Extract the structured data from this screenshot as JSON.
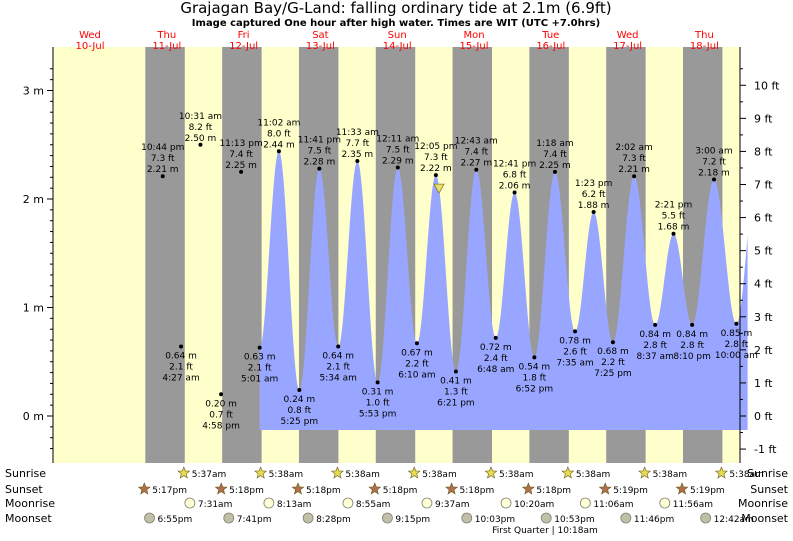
{
  "title": "Grajagan Bay/G-Land: falling  ordinary tide at 2.1m (6.9ft)",
  "subtitle": "Image captured One hour after high water. Times are WIT (UTC +7.0hrs)",
  "colors": {
    "night": "#999999",
    "day": "#ffffcc",
    "water": "#99a6ff",
    "weekday": "#ff0000",
    "star_fill": "#e8dc50",
    "sunset_fill": "#b0704a",
    "moonrise_fill": "#ffffd8",
    "moonset_fill": "#c0c0a8"
  },
  "chart_data": {
    "type": "area",
    "title": "Grajagan Bay/G-Land: falling  ordinary tide at 2.1m (6.9ft)",
    "y_left_unit": "m",
    "y_right_unit": "ft",
    "ylim_m": [
      -0.33,
      3.27
    ],
    "y_left_ticks": [
      {
        "v": 0,
        "label": "0 m"
      },
      {
        "v": 1,
        "label": "1 m"
      },
      {
        "v": 2,
        "label": "2 m"
      },
      {
        "v": 3,
        "label": "3 m"
      }
    ],
    "y_right_ticks": [
      "-1 ft",
      "0 ft",
      "1 ft",
      "2 ft",
      "3 ft",
      "4 ft",
      "5 ft",
      "6 ft",
      "7 ft",
      "8 ft",
      "9 ft",
      "10 ft"
    ],
    "days": [
      {
        "weekday": "Wed",
        "date": "10-Jul"
      },
      {
        "weekday": "Thu",
        "date": "11-Jul"
      },
      {
        "weekday": "Fri",
        "date": "12-Jul"
      },
      {
        "weekday": "Sat",
        "date": "13-Jul"
      },
      {
        "weekday": "Sun",
        "date": "14-Jul"
      },
      {
        "weekday": "Mon",
        "date": "15-Jul"
      },
      {
        "weekday": "Tue",
        "date": "16-Jul"
      },
      {
        "weekday": "Wed",
        "date": "17-Jul"
      },
      {
        "weekday": "Thu",
        "date": "18-Jul"
      }
    ],
    "extremes": [
      {
        "kind": "high",
        "day": 0,
        "time": "10:44 pm",
        "m": 2.21,
        "ft": "7.3 ft",
        "m_label": "2.21 m"
      },
      {
        "kind": "low",
        "day": 1,
        "time": "4:27 am",
        "m": 0.64,
        "ft": "2.1 ft",
        "m_label": "0.64 m"
      },
      {
        "kind": "high",
        "day": 1,
        "time": "10:31 am",
        "m": 2.5,
        "ft": "8.2 ft",
        "m_label": "2.50 m"
      },
      {
        "kind": "low",
        "day": 1,
        "time": "4:58 pm",
        "m": 0.2,
        "ft": "0.7 ft",
        "m_label": "0.20 m"
      },
      {
        "kind": "high",
        "day": 1,
        "time": "11:13 pm",
        "m": 2.25,
        "ft": "7.4 ft",
        "m_label": "2.25 m"
      },
      {
        "kind": "low",
        "day": 2,
        "time": "5:01 am",
        "m": 0.63,
        "ft": "2.1 ft",
        "m_label": "0.63 m"
      },
      {
        "kind": "high",
        "day": 2,
        "time": "11:02 am",
        "m": 2.44,
        "ft": "8.0 ft",
        "m_label": "2.44 m"
      },
      {
        "kind": "low",
        "day": 2,
        "time": "5:25 pm",
        "m": 0.24,
        "ft": "0.8 ft",
        "m_label": "0.24 m"
      },
      {
        "kind": "high",
        "day": 2,
        "time": "11:41 pm",
        "m": 2.28,
        "ft": "7.5 ft",
        "m_label": "2.28 m"
      },
      {
        "kind": "low",
        "day": 3,
        "time": "5:34 am",
        "m": 0.64,
        "ft": "2.1 ft",
        "m_label": "0.64 m"
      },
      {
        "kind": "high",
        "day": 3,
        "time": "11:33 am",
        "m": 2.35,
        "ft": "7.7 ft",
        "m_label": "2.35 m"
      },
      {
        "kind": "low",
        "day": 3,
        "time": "5:53 pm",
        "m": 0.31,
        "ft": "1.0 ft",
        "m_label": "0.31 m"
      },
      {
        "kind": "high",
        "day": 4,
        "time": "12:11 am",
        "m": 2.29,
        "ft": "7.5 ft",
        "m_label": "2.29 m"
      },
      {
        "kind": "low",
        "day": 4,
        "time": "6:10 am",
        "m": 0.67,
        "ft": "2.2 ft",
        "m_label": "0.67 m"
      },
      {
        "kind": "high",
        "day": 4,
        "time": "12:05 pm",
        "m": 2.22,
        "ft": "7.3 ft",
        "m_label": "2.22 m"
      },
      {
        "kind": "low",
        "day": 4,
        "time": "6:21 pm",
        "m": 0.41,
        "ft": "1.3 ft",
        "m_label": "0.41 m"
      },
      {
        "kind": "high",
        "day": 5,
        "time": "12:43 am",
        "m": 2.27,
        "ft": "7.4 ft",
        "m_label": "2.27 m"
      },
      {
        "kind": "low",
        "day": 5,
        "time": "6:48 am",
        "m": 0.72,
        "ft": "2.4 ft",
        "m_label": "0.72 m"
      },
      {
        "kind": "high",
        "day": 5,
        "time": "12:41 pm",
        "m": 2.06,
        "ft": "6.8 ft",
        "m_label": "2.06 m"
      },
      {
        "kind": "low",
        "day": 5,
        "time": "6:52 pm",
        "m": 0.54,
        "ft": "1.8 ft",
        "m_label": "0.54 m"
      },
      {
        "kind": "high",
        "day": 6,
        "time": "1:18 am",
        "m": 2.25,
        "ft": "7.4 ft",
        "m_label": "2.25 m"
      },
      {
        "kind": "low",
        "day": 6,
        "time": "7:35 am",
        "m": 0.78,
        "ft": "2.6 ft",
        "m_label": "0.78 m"
      },
      {
        "kind": "high",
        "day": 6,
        "time": "1:23 pm",
        "m": 1.88,
        "ft": "6.2 ft",
        "m_label": "1.88 m"
      },
      {
        "kind": "low",
        "day": 6,
        "time": "7:25 pm",
        "m": 0.68,
        "ft": "2.2 ft",
        "m_label": "0.68 m"
      },
      {
        "kind": "high",
        "day": 7,
        "time": "2:02 am",
        "m": 2.21,
        "ft": "7.3 ft",
        "m_label": "2.21 m"
      },
      {
        "kind": "low",
        "day": 7,
        "time": "8:37 am",
        "m": 0.84,
        "ft": "2.8 ft",
        "m_label": "0.84 m"
      },
      {
        "kind": "high",
        "day": 7,
        "time": "2:21 pm",
        "m": 1.68,
        "ft": "5.5 ft",
        "m_label": "1.68 m"
      },
      {
        "kind": "low",
        "day": 7,
        "time": "8:10 pm",
        "m": 0.84,
        "ft": "2.8 ft",
        "m_label": "0.84 m"
      },
      {
        "kind": "high",
        "day": 8,
        "time": "3:00 am",
        "m": 2.18,
        "ft": "7.2 ft",
        "m_label": "2.18 m"
      },
      {
        "kind": "low",
        "day": 8,
        "time": "10:00 am",
        "m": 0.85,
        "ft": "2.8 ft",
        "m_label": "0.85 m"
      }
    ],
    "current_marker": {
      "day": 4,
      "time": "1:05 pm",
      "m": 2.1,
      "label": "falling"
    }
  },
  "almanac": {
    "row_labels": [
      "Sunrise",
      "Sunset",
      "Moonrise",
      "Moonset"
    ],
    "sunrise": [
      {
        "day": 1,
        "time": "5:37am"
      },
      {
        "day": 2,
        "time": "5:38am"
      },
      {
        "day": 3,
        "time": "5:38am"
      },
      {
        "day": 4,
        "time": "5:38am"
      },
      {
        "day": 5,
        "time": "5:38am"
      },
      {
        "day": 6,
        "time": "5:38am"
      },
      {
        "day": 7,
        "time": "5:38am"
      },
      {
        "day": 8,
        "time": "5:38am"
      }
    ],
    "sunset": [
      {
        "day": 0,
        "time": "5:17pm"
      },
      {
        "day": 1,
        "time": "5:18pm"
      },
      {
        "day": 2,
        "time": "5:18pm"
      },
      {
        "day": 3,
        "time": "5:18pm"
      },
      {
        "day": 4,
        "time": "5:18pm"
      },
      {
        "day": 5,
        "time": "5:18pm"
      },
      {
        "day": 6,
        "time": "5:19pm"
      },
      {
        "day": 7,
        "time": "5:19pm"
      }
    ],
    "moonrise": [
      {
        "day": 1,
        "time": "7:31am"
      },
      {
        "day": 2,
        "time": "8:13am"
      },
      {
        "day": 3,
        "time": "8:55am"
      },
      {
        "day": 4,
        "time": "9:37am"
      },
      {
        "day": 5,
        "time": "10:20am"
      },
      {
        "day": 6,
        "time": "11:06am"
      },
      {
        "day": 7,
        "time": "11:56am"
      }
    ],
    "moonset": [
      {
        "day": 0,
        "time": "6:55pm"
      },
      {
        "day": 1,
        "time": "7:41pm"
      },
      {
        "day": 2,
        "time": "8:28pm"
      },
      {
        "day": 3,
        "time": "9:15pm"
      },
      {
        "day": 4,
        "time": "10:03pm"
      },
      {
        "day": 5,
        "time": "10:53pm"
      },
      {
        "day": 6,
        "time": "11:46pm"
      },
      {
        "day": 8,
        "time": "12:42am"
      }
    ],
    "moon_phase_note": "First Quarter | 10:18am"
  }
}
